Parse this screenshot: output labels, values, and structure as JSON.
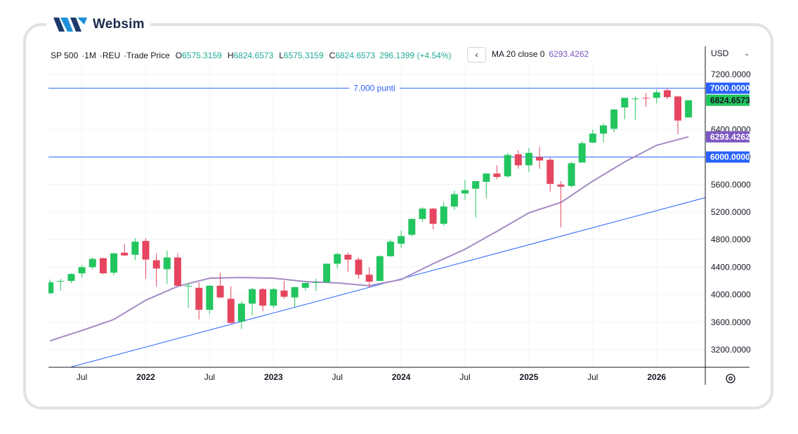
{
  "brand": {
    "name": "Websim"
  },
  "header": {
    "symbol": "SP 500",
    "interval": "1M",
    "source": "REU",
    "price_type": "Trade Price",
    "open_label": "O",
    "open": "6575.3159",
    "high_label": "H",
    "high": "6824.6573",
    "low_label": "L",
    "low": "6575.3159",
    "close_label": "C",
    "close": "6824.6573",
    "change": "296.1399 (+4.54%)"
  },
  "indicator": {
    "label": "MA 20 close 0",
    "value": "6293.4262",
    "color": "#9c84c2"
  },
  "currency": "USD",
  "colors": {
    "up": "#22c55e",
    "down": "#e5455f",
    "line": "#2962ff",
    "ma": "#a48bc4",
    "grid": "#f0f3fa"
  },
  "chart_data": {
    "type": "candlestick",
    "ylim": [
      2950,
      7400
    ],
    "y_ticks": [
      3200,
      3600,
      4000,
      4400,
      4800,
      5200,
      5600,
      6000,
      6400,
      7200
    ],
    "y_tick_labels": [
      "3200.0000",
      "3600.0000",
      "4000.0000",
      "4400.0000",
      "4800.0000",
      "5200.0000",
      "5600.0000",
      "6000.0000",
      "6400.0000",
      "7200.0000"
    ],
    "x_ticks": [
      {
        "date": "2021-07",
        "label": "Jul",
        "bold": false
      },
      {
        "date": "2022-01",
        "label": "2022",
        "bold": true
      },
      {
        "date": "2022-07",
        "label": "Jul",
        "bold": false
      },
      {
        "date": "2023-01",
        "label": "2023",
        "bold": true
      },
      {
        "date": "2023-07",
        "label": "Jul",
        "bold": false
      },
      {
        "date": "2024-01",
        "label": "2024",
        "bold": true
      },
      {
        "date": "2024-07",
        "label": "Jul",
        "bold": false
      },
      {
        "date": "2025-01",
        "label": "2025",
        "bold": true
      },
      {
        "date": "2025-07",
        "label": "Jul",
        "bold": false
      },
      {
        "date": "2026-01",
        "label": "2026",
        "bold": true
      }
    ],
    "candles": [
      {
        "d": "2021-04",
        "o": 4020,
        "h": 4220,
        "l": 4010,
        "c": 4180
      },
      {
        "d": "2021-05",
        "o": 4190,
        "h": 4230,
        "l": 4060,
        "c": 4200
      },
      {
        "d": "2021-06",
        "o": 4200,
        "h": 4310,
        "l": 4170,
        "c": 4300
      },
      {
        "d": "2021-07",
        "o": 4310,
        "h": 4430,
        "l": 4250,
        "c": 4400
      },
      {
        "d": "2021-08",
        "o": 4400,
        "h": 4540,
        "l": 4370,
        "c": 4520
      },
      {
        "d": "2021-09",
        "o": 4530,
        "h": 4540,
        "l": 4300,
        "c": 4310
      },
      {
        "d": "2021-10",
        "o": 4320,
        "h": 4610,
        "l": 4280,
        "c": 4600
      },
      {
        "d": "2021-11",
        "o": 4610,
        "h": 4740,
        "l": 4560,
        "c": 4570
      },
      {
        "d": "2021-12",
        "o": 4580,
        "h": 4820,
        "l": 4500,
        "c": 4770
      },
      {
        "d": "2022-01",
        "o": 4780,
        "h": 4820,
        "l": 4230,
        "c": 4510
      },
      {
        "d": "2022-02",
        "o": 4500,
        "h": 4600,
        "l": 4120,
        "c": 4380
      },
      {
        "d": "2022-03",
        "o": 4370,
        "h": 4640,
        "l": 4160,
        "c": 4540
      },
      {
        "d": "2022-04",
        "o": 4540,
        "h": 4600,
        "l": 4120,
        "c": 4130
      },
      {
        "d": "2022-05",
        "o": 4130,
        "h": 4170,
        "l": 3810,
        "c": 4130
      },
      {
        "d": "2022-06",
        "o": 4100,
        "h": 4180,
        "l": 3640,
        "c": 3780
      },
      {
        "d": "2022-07",
        "o": 3780,
        "h": 4140,
        "l": 3720,
        "c": 4130
      },
      {
        "d": "2022-08",
        "o": 4130,
        "h": 4320,
        "l": 3950,
        "c": 3960
      },
      {
        "d": "2022-09",
        "o": 3940,
        "h": 4120,
        "l": 3580,
        "c": 3590
      },
      {
        "d": "2022-10",
        "o": 3610,
        "h": 3900,
        "l": 3500,
        "c": 3870
      },
      {
        "d": "2022-11",
        "o": 3870,
        "h": 4100,
        "l": 3700,
        "c": 4080
      },
      {
        "d": "2022-12",
        "o": 4080,
        "h": 4100,
        "l": 3760,
        "c": 3840
      },
      {
        "d": "2023-01",
        "o": 3840,
        "h": 4100,
        "l": 3800,
        "c": 4080
      },
      {
        "d": "2023-02",
        "o": 4060,
        "h": 4200,
        "l": 3940,
        "c": 3970
      },
      {
        "d": "2023-03",
        "o": 3960,
        "h": 4110,
        "l": 3810,
        "c": 4110
      },
      {
        "d": "2023-04",
        "o": 4100,
        "h": 4170,
        "l": 4060,
        "c": 4170
      },
      {
        "d": "2023-05",
        "o": 4170,
        "h": 4230,
        "l": 4050,
        "c": 4180
      },
      {
        "d": "2023-06",
        "o": 4180,
        "h": 4450,
        "l": 4170,
        "c": 4450
      },
      {
        "d": "2023-07",
        "o": 4450,
        "h": 4610,
        "l": 4380,
        "c": 4590
      },
      {
        "d": "2023-08",
        "o": 4580,
        "h": 4610,
        "l": 4330,
        "c": 4510
      },
      {
        "d": "2023-09",
        "o": 4510,
        "h": 4540,
        "l": 4230,
        "c": 4290
      },
      {
        "d": "2023-10",
        "o": 4290,
        "h": 4400,
        "l": 4100,
        "c": 4190
      },
      {
        "d": "2023-11",
        "o": 4200,
        "h": 4570,
        "l": 4200,
        "c": 4560
      },
      {
        "d": "2023-12",
        "o": 4560,
        "h": 4800,
        "l": 4550,
        "c": 4770
      },
      {
        "d": "2024-01",
        "o": 4740,
        "h": 4930,
        "l": 4680,
        "c": 4850
      },
      {
        "d": "2024-02",
        "o": 4870,
        "h": 5110,
        "l": 4850,
        "c": 5100
      },
      {
        "d": "2024-03",
        "o": 5100,
        "h": 5270,
        "l": 5060,
        "c": 5250
      },
      {
        "d": "2024-04",
        "o": 5250,
        "h": 5260,
        "l": 4950,
        "c": 5030
      },
      {
        "d": "2024-05",
        "o": 5030,
        "h": 5340,
        "l": 5000,
        "c": 5280
      },
      {
        "d": "2024-06",
        "o": 5280,
        "h": 5510,
        "l": 5230,
        "c": 5460
      },
      {
        "d": "2024-07",
        "o": 5470,
        "h": 5670,
        "l": 5380,
        "c": 5520
      },
      {
        "d": "2024-08",
        "o": 5540,
        "h": 5650,
        "l": 5120,
        "c": 5650
      },
      {
        "d": "2024-09",
        "o": 5640,
        "h": 5770,
        "l": 5400,
        "c": 5760
      },
      {
        "d": "2024-10",
        "o": 5760,
        "h": 5880,
        "l": 5680,
        "c": 5710
      },
      {
        "d": "2024-11",
        "o": 5720,
        "h": 6060,
        "l": 5700,
        "c": 6030
      },
      {
        "d": "2024-12",
        "o": 6040,
        "h": 6100,
        "l": 5830,
        "c": 5880
      },
      {
        "d": "2025-01",
        "o": 5880,
        "h": 6130,
        "l": 5780,
        "c": 6060
      },
      {
        "d": "2025-02",
        "o": 6000,
        "h": 6150,
        "l": 5830,
        "c": 5950
      },
      {
        "d": "2025-03",
        "o": 5960,
        "h": 5990,
        "l": 5500,
        "c": 5610
      },
      {
        "d": "2025-04",
        "o": 5600,
        "h": 5650,
        "l": 4980,
        "c": 5570
      },
      {
        "d": "2025-05",
        "o": 5580,
        "h": 5930,
        "l": 5560,
        "c": 5910
      },
      {
        "d": "2025-06",
        "o": 5920,
        "h": 6230,
        "l": 5920,
        "c": 6200
      },
      {
        "d": "2025-07",
        "o": 6210,
        "h": 6400,
        "l": 6200,
        "c": 6340
      },
      {
        "d": "2025-08",
        "o": 6340,
        "h": 6490,
        "l": 6210,
        "c": 6460
      },
      {
        "d": "2025-09",
        "o": 6410,
        "h": 6700,
        "l": 6360,
        "c": 6690
      },
      {
        "d": "2025-10",
        "o": 6720,
        "h": 6860,
        "l": 6550,
        "c": 6860
      },
      {
        "d": "2025-11",
        "o": 6850,
        "h": 6880,
        "l": 6540,
        "c": 6850
      },
      {
        "d": "2025-12",
        "o": 6860,
        "h": 6930,
        "l": 6730,
        "c": 6850
      },
      {
        "d": "2026-01",
        "o": 6860,
        "h": 6980,
        "l": 6780,
        "c": 6940
      },
      {
        "d": "2026-02",
        "o": 6970,
        "h": 6990,
        "l": 6840,
        "c": 6870
      },
      {
        "d": "2026-03",
        "o": 6880,
        "h": 6890,
        "l": 6330,
        "c": 6530
      },
      {
        "d": "2026-04",
        "o": 6575.3159,
        "h": 6824.6573,
        "l": 6575.3159,
        "c": 6824.6573
      }
    ],
    "ma20": [
      {
        "d": "2021-04",
        "v": 3330
      },
      {
        "d": "2021-07",
        "v": 3480
      },
      {
        "d": "2021-10",
        "v": 3640
      },
      {
        "d": "2022-01",
        "v": 3920
      },
      {
        "d": "2022-04",
        "v": 4120
      },
      {
        "d": "2022-07",
        "v": 4240
      },
      {
        "d": "2022-10",
        "v": 4250
      },
      {
        "d": "2023-01",
        "v": 4240
      },
      {
        "d": "2023-04",
        "v": 4190
      },
      {
        "d": "2023-07",
        "v": 4170
      },
      {
        "d": "2023-10",
        "v": 4130
      },
      {
        "d": "2024-01",
        "v": 4220
      },
      {
        "d": "2024-04",
        "v": 4450
      },
      {
        "d": "2024-07",
        "v": 4660
      },
      {
        "d": "2024-10",
        "v": 4920
      },
      {
        "d": "2025-01",
        "v": 5190
      },
      {
        "d": "2025-04",
        "v": 5340
      },
      {
        "d": "2025-07",
        "v": 5650
      },
      {
        "d": "2025-10",
        "v": 5930
      },
      {
        "d": "2026-01",
        "v": 6170
      },
      {
        "d": "2026-04",
        "v": 6293.4262
      }
    ],
    "horizontal_lines": [
      {
        "value": 7000,
        "label": "7.000 punti",
        "axis_label": "7000.0000"
      },
      {
        "value": 6000,
        "label": "",
        "axis_label": "6000.0000"
      }
    ],
    "trendline": [
      {
        "d": "2021-06",
        "v": 2950
      },
      {
        "d": "2026-08",
        "v": 5510
      }
    ],
    "price_labels": [
      {
        "value": 6824.6573,
        "text": "6824.6573",
        "color": "#22c55e"
      },
      {
        "value": 6293.4262,
        "text": "6293.4262",
        "color": "#7e57c2"
      }
    ]
  }
}
